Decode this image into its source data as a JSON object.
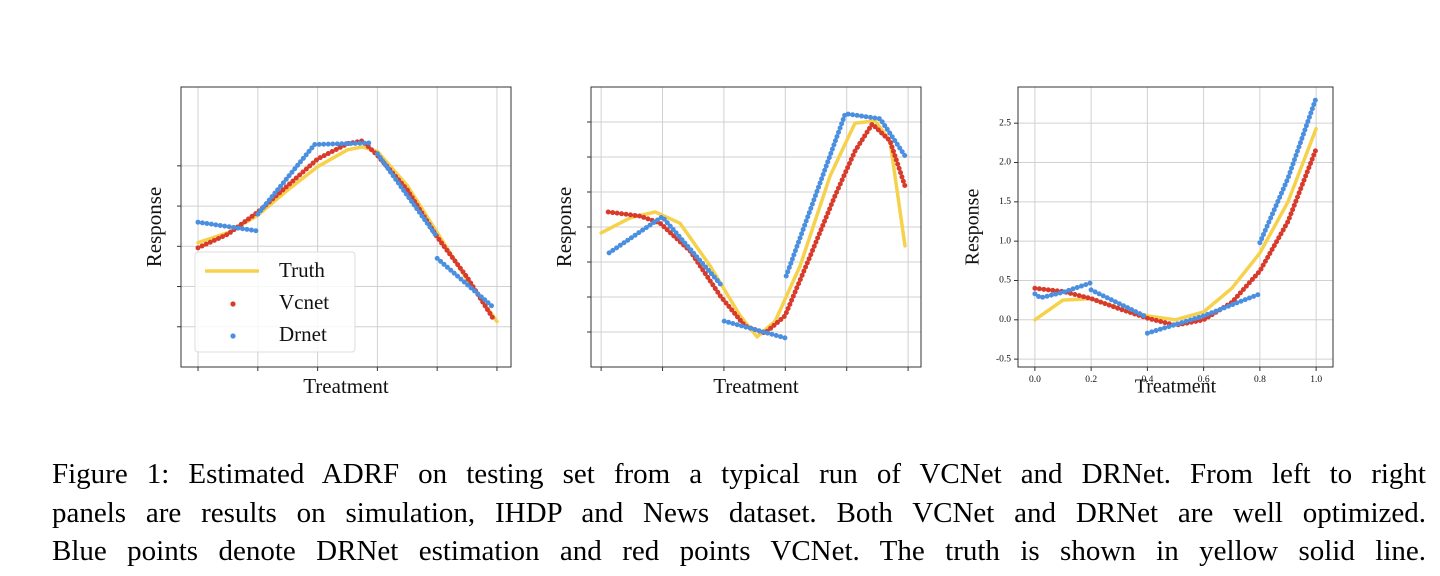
{
  "chart_data": [
    {
      "type": "line",
      "xlabel": "Treatment",
      "ylabel": "Response",
      "grid": true,
      "tick_labels": false,
      "legend": "lower left",
      "xlim": [
        -0.057,
        1.047
      ],
      "ylim": [
        -1,
        5.96
      ],
      "xticks": [
        0,
        0.2,
        0.4,
        0.6,
        0.8,
        1.0
      ],
      "yticks": [
        0,
        1,
        2,
        3,
        4
      ],
      "series": [
        {
          "name": "Truth",
          "color": "#f6d24c",
          "style": "solid",
          "x": [
            0,
            0.1,
            0.2,
            0.3,
            0.4,
            0.5,
            0.55,
            0.6,
            0.7,
            0.8,
            0.9,
            1.0
          ],
          "values": [
            2.09,
            2.34,
            2.77,
            3.4,
            3.98,
            4.4,
            4.47,
            4.36,
            3.51,
            2.34,
            1.17,
            0.13
          ]
        },
        {
          "name": "Vcnet",
          "color": "#d83a2b",
          "style": "dots",
          "x": [
            0,
            0.1,
            0.2,
            0.3,
            0.4,
            0.5,
            0.55,
            0.6,
            0.7,
            0.8,
            0.9,
            0.99
          ],
          "values": [
            1.96,
            2.3,
            2.85,
            3.51,
            4.17,
            4.55,
            4.62,
            4.26,
            3.4,
            2.23,
            1.23,
            0.17
          ]
        },
        {
          "name": "Drnet",
          "color": "#4a8fe0",
          "style": "dots",
          "x": [
            0,
            0.2,
            0.2,
            0.2,
            0.39,
            0.58,
            0.6,
            0.6,
            0.8,
            0.8,
            0.8,
            0.99
          ],
          "values": [
            2.6,
            2.38,
            null,
            2.8,
            4.53,
            4.57,
            null,
            4.3,
            2.23,
            null,
            1.7,
            0.47
          ]
        }
      ]
    },
    {
      "type": "line",
      "xlabel": "Treatment",
      "ylabel": "Response",
      "grid": true,
      "tick_labels": false,
      "xlim": [
        -0.033,
        1.042
      ],
      "ylim": [
        -1,
        7
      ],
      "xticks": [
        0,
        0.2,
        0.4,
        0.6,
        0.8,
        1.0
      ],
      "yticks": [
        0,
        1,
        2,
        3,
        4,
        5,
        6
      ],
      "series": [
        {
          "color": "#f6d24c",
          "style": "solid",
          "x": [
            0,
            0.094,
            0.176,
            0.257,
            0.355,
            0.453,
            0.508,
            0.567,
            0.648,
            0.746,
            0.827,
            0.893,
            0.941,
            0.99
          ],
          "values": [
            2.83,
            3.26,
            3.43,
            3.11,
            1.89,
            0.46,
            -0.14,
            0.31,
            1.89,
            4.46,
            5.97,
            6.03,
            5.46,
            2.46
          ]
        },
        {
          "color": "#d83a2b",
          "style": "dots",
          "x": [
            0.023,
            0.127,
            0.192,
            0.29,
            0.388,
            0.469,
            0.534,
            0.599,
            0.681,
            0.762,
            0.827,
            0.883,
            0.941,
            0.99
          ],
          "values": [
            3.43,
            3.31,
            3.11,
            2.31,
            1.03,
            0.17,
            -0.03,
            0.46,
            2.17,
            3.89,
            5.17,
            5.94,
            5.46,
            4.17
          ]
        },
        {
          "color": "#4a8fe0",
          "style": "dots",
          "x": [
            0.026,
            0.199,
            0.394,
            0.4,
            0.401,
            0.599,
            0.6,
            0.603,
            0.795,
            0.801,
            0.909,
            0.99
          ],
          "values": [
            2.26,
            3.29,
            1.31,
            null,
            0.31,
            -0.17,
            null,
            1.6,
            6.23,
            6.23,
            6.09,
            5.03
          ]
        }
      ]
    },
    {
      "type": "line",
      "xlabel": "Treatment",
      "ylabel": "Response",
      "grid": true,
      "tick_labels": true,
      "xlim": [
        -0.06,
        1.06
      ],
      "ylim": [
        -0.6,
        2.96
      ],
      "xticks": [
        {
          "value": 0,
          "label": "0.0"
        },
        0.2,
        0.4,
        0.6,
        0.8,
        {
          "value": 1,
          "label": "1.0"
        }
      ],
      "yticks": [
        -0.5,
        {
          "value": 0,
          "label": "0.0"
        },
        0.5,
        {
          "value": 1,
          "label": "1.0"
        },
        1.5,
        {
          "value": 2,
          "label": "2.0"
        },
        2.5
      ],
      "series": [
        {
          "color": "#f6d24c",
          "style": "solid",
          "x": [
            0,
            0.1,
            0.2,
            0.3,
            0.4,
            0.5,
            0.6,
            0.7,
            0.8,
            0.9,
            1.0
          ],
          "values": [
            0.0,
            0.25,
            0.27,
            0.15,
            0.05,
            0.0,
            0.1,
            0.4,
            0.85,
            1.5,
            2.43
          ]
        },
        {
          "color": "#d83a2b",
          "style": "dots",
          "x": [
            0,
            0.1,
            0.2,
            0.3,
            0.4,
            0.5,
            0.6,
            0.7,
            0.8,
            0.9,
            1.0
          ],
          "values": [
            0.4,
            0.36,
            0.27,
            0.14,
            0.02,
            -0.07,
            0.0,
            0.22,
            0.62,
            1.25,
            2.17
          ]
        },
        {
          "color": "#4a8fe0",
          "style": "dots",
          "x": [
            0,
            0.02,
            0.1,
            0.2,
            0.2,
            0.2,
            0.4,
            0.4,
            0.4,
            0.6,
            0.8,
            0.8,
            0.8,
            0.9,
            1.0
          ],
          "values": [
            0.33,
            0.28,
            0.35,
            0.47,
            null,
            0.38,
            0.03,
            null,
            -0.17,
            0.05,
            0.33,
            null,
            0.98,
            1.8,
            2.82
          ]
        }
      ]
    }
  ],
  "caption": [
    "Figure 1: Estimated ADRF on testing set from a typical run of VCNet and DRNet. From left to right",
    "panels are results on simulation, IHDP and News dataset. Both VCNet and DRNet are well optimized.",
    "Blue points denote DRNet estimation and red points VCNet. The truth is shown in yellow solid line."
  ]
}
